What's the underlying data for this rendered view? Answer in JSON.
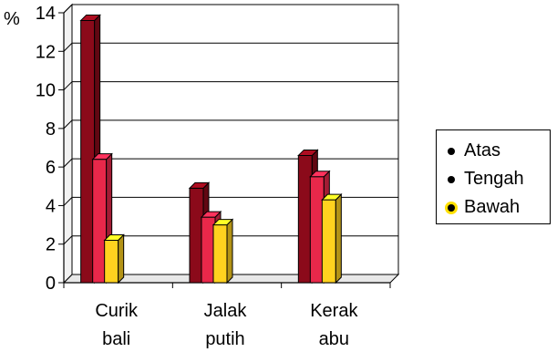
{
  "chart_data": {
    "type": "bar",
    "title": "",
    "xlabel": "",
    "ylabel": "%",
    "ylim": [
      0,
      14
    ],
    "yticks": [
      "0",
      "2",
      "4",
      "6",
      "8",
      "10",
      "12",
      "14"
    ],
    "grid": true,
    "legend_position": "right",
    "categories": [
      {
        "line1": "Curik",
        "line2": "bali"
      },
      {
        "line1": "Jalak",
        "line2": "putih"
      },
      {
        "line1": "Kerak",
        "line2": "abu"
      }
    ],
    "series": [
      {
        "name": "Atas",
        "color": "#8b0a1a",
        "values": [
          13.6,
          4.9,
          6.6
        ]
      },
      {
        "name": "Tengah",
        "color": "#e8284a",
        "values": [
          6.4,
          3.4,
          5.5
        ]
      },
      {
        "name": "Bawah",
        "color": "#ffd21f",
        "values": [
          2.2,
          3.0,
          4.3
        ]
      }
    ]
  }
}
